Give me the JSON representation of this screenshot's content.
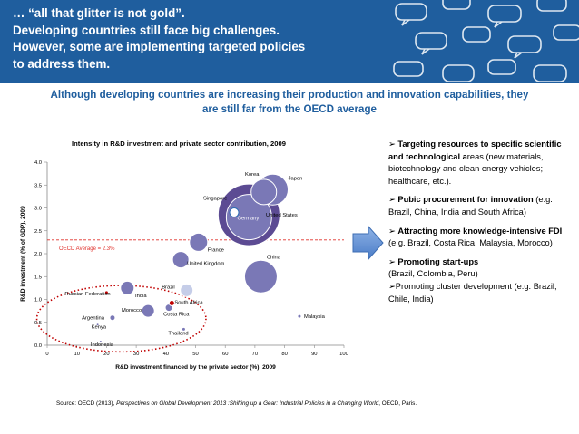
{
  "header": {
    "lines": [
      "… “all that glitter is not gold”.",
      "Developing countries still face big challenges.",
      "However, some are implementing targeted policies",
      "to address them."
    ]
  },
  "subtitle": {
    "line1": "Although developing countries are increasing their production and innovation capabilities, they",
    "line2": "are still far from the OECD average"
  },
  "chart_data": {
    "type": "scatter",
    "title": "Intensity in R&D investment and private sector contribution, 2009",
    "xlabel": "R&D investment financed by the private sector (%), 2009",
    "ylabel": "R&D investment (% of GDP), 2009",
    "xlim": [
      0,
      100
    ],
    "ylim": [
      0,
      4.0
    ],
    "xticks": [
      "0",
      "10",
      "20",
      "30",
      "40",
      "50",
      "60",
      "70",
      "80",
      "90",
      "100"
    ],
    "yticks": [
      "0.0",
      "0.5",
      "1.0",
      "1.5",
      "2.0",
      "2.5",
      "3.0",
      "3.5",
      "4.0"
    ],
    "oecd_average": {
      "label": "OECD Average = 2.3%",
      "value": 2.3
    },
    "colors": {
      "bubble": "#7a78b6",
      "bubble_dark": "#5c4b93",
      "oecd_line": "#e0302b",
      "highlight": "#c00000"
    },
    "points": [
      {
        "name": "Korea",
        "x": 73,
        "y": 3.35,
        "size": 14
      },
      {
        "name": "Japan",
        "x": 76,
        "y": 3.4,
        "size": 17
      },
      {
        "name": "Germany",
        "x": 68,
        "y": 2.8,
        "size": 25
      },
      {
        "name": "Singapore",
        "x": 63,
        "y": 2.9,
        "size": 5
      },
      {
        "name": "United States",
        "x": 68,
        "y": 2.85,
        "size": 34
      },
      {
        "name": "France",
        "x": 51,
        "y": 2.25,
        "size": 10
      },
      {
        "name": "United Kingdom",
        "x": 45,
        "y": 1.87,
        "size": 9
      },
      {
        "name": "China",
        "x": 72,
        "y": 1.5,
        "size": 18
      },
      {
        "name": "Russian Federation",
        "x": 20,
        "y": 1.15,
        "size": 2
      },
      {
        "name": "Brazil",
        "x": 47,
        "y": 1.2,
        "size": 7
      },
      {
        "name": "India",
        "x": 27,
        "y": 1.25,
        "size": 7.5
      },
      {
        "name": "South Africa",
        "x": 42,
        "y": 0.92,
        "size": 3
      },
      {
        "name": "Morocco",
        "x": 34,
        "y": 0.75,
        "size": 7
      },
      {
        "name": "Costa Rica",
        "x": 41,
        "y": 0.82,
        "size": 4
      },
      {
        "name": "Argentina",
        "x": 22,
        "y": 0.6,
        "size": 3
      },
      {
        "name": "Malaysia",
        "x": 85,
        "y": 0.63,
        "size": 2
      },
      {
        "name": "Kenya",
        "x": 17,
        "y": 0.45,
        "size": 1.5
      },
      {
        "name": "Thailand",
        "x": 46,
        "y": 0.35,
        "size": 2
      },
      {
        "name": "Indonesia",
        "x": 18,
        "y": 0.08,
        "size": 1.5
      }
    ]
  },
  "bullets": [
    {
      "bold": "Targeting resources to specific scientific and technological a",
      "rest": "reas (new materials, biotechnology and clean energy vehicles; healthcare, etc.)."
    },
    {
      "bold": "Pubic procurement for innovation",
      "rest": " (e.g. Brazil, China, India and South Africa)"
    },
    {
      "bold": "Attracting more knowledge-intensive FDI",
      "rest": " (e.g. Brazil, Costa Rica, Malaysia, Morocco)"
    },
    {
      "bold": "Promoting start-ups",
      "rest": "(Brazil,   Colombia, Peru)"
    },
    {
      "bold": "",
      "rest": "Promoting cluster development (e.g. Brazil, Chile, India)"
    }
  ],
  "source": {
    "prefix": "Source: OECD (2013), ",
    "title": "Perspectives on Global Development 2013 :Shifting up a Gear: Industrial Policies in a Changing World",
    "suffix": ", OECD, Paris."
  }
}
